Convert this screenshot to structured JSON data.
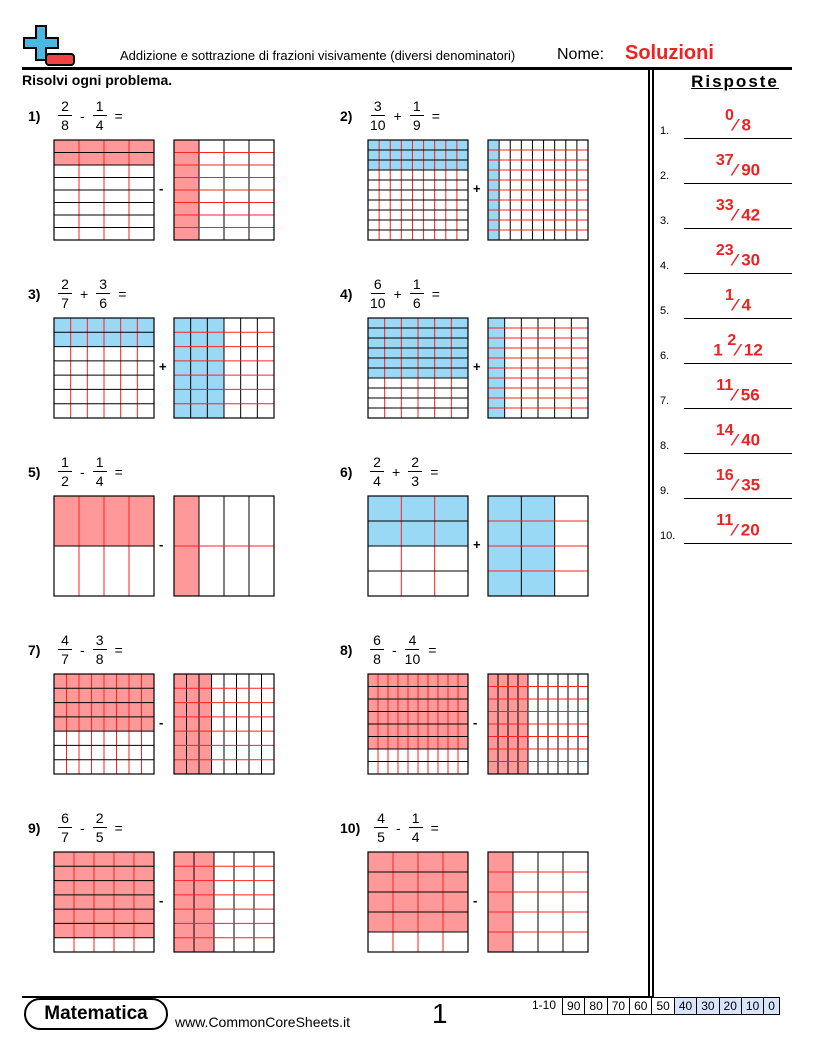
{
  "header": {
    "title": "Addizione e sottrazione di frazioni visivamente (diversi denominatori)",
    "name_label": "Nome:",
    "name_value": "Soluzioni",
    "instructions": "Risolvi ogni problema.",
    "answers_title": "Risposte"
  },
  "colors": {
    "subtract_fill": "#ff9999",
    "add_fill": "#99d9f5",
    "grid_inner": "#ff2222",
    "answer": "#e22222"
  },
  "problems": [
    {
      "num": "1)",
      "a": [
        "2",
        "8"
      ],
      "op": "-",
      "b": [
        "1",
        "4"
      ]
    },
    {
      "num": "2)",
      "a": [
        "3",
        "10"
      ],
      "op": "+",
      "b": [
        "1",
        "9"
      ]
    },
    {
      "num": "3)",
      "a": [
        "2",
        "7"
      ],
      "op": "+",
      "b": [
        "3",
        "6"
      ]
    },
    {
      "num": "4)",
      "a": [
        "6",
        "10"
      ],
      "op": "+",
      "b": [
        "1",
        "6"
      ]
    },
    {
      "num": "5)",
      "a": [
        "1",
        "2"
      ],
      "op": "-",
      "b": [
        "1",
        "4"
      ]
    },
    {
      "num": "6)",
      "a": [
        "2",
        "4"
      ],
      "op": "+",
      "b": [
        "2",
        "3"
      ]
    },
    {
      "num": "7)",
      "a": [
        "4",
        "7"
      ],
      "op": "-",
      "b": [
        "3",
        "8"
      ]
    },
    {
      "num": "8)",
      "a": [
        "6",
        "8"
      ],
      "op": "-",
      "b": [
        "4",
        "10"
      ]
    },
    {
      "num": "9)",
      "a": [
        "6",
        "7"
      ],
      "op": "-",
      "b": [
        "2",
        "5"
      ]
    },
    {
      "num": "10)",
      "a": [
        "4",
        "5"
      ],
      "op": "-",
      "b": [
        "1",
        "4"
      ]
    }
  ],
  "answers": [
    {
      "n": "1.",
      "whole": "",
      "num": "0",
      "den": "8"
    },
    {
      "n": "2.",
      "whole": "",
      "num": "37",
      "den": "90"
    },
    {
      "n": "3.",
      "whole": "",
      "num": "33",
      "den": "42"
    },
    {
      "n": "4.",
      "whole": "",
      "num": "23",
      "den": "30"
    },
    {
      "n": "5.",
      "whole": "",
      "num": "1",
      "den": "4"
    },
    {
      "n": "6.",
      "whole": "1",
      "num": "2",
      "den": "12"
    },
    {
      "n": "7.",
      "whole": "",
      "num": "11",
      "den": "56"
    },
    {
      "n": "8.",
      "whole": "",
      "num": "14",
      "den": "40"
    },
    {
      "n": "9.",
      "whole": "",
      "num": "16",
      "den": "35"
    },
    {
      "n": "10.",
      "whole": "",
      "num": "11",
      "den": "20"
    }
  ],
  "footer": {
    "brand": "Matematica",
    "site": "www.CommonCoreSheets.it",
    "page": "1",
    "score_label": "1-10",
    "scores": [
      "90",
      "80",
      "70",
      "60",
      "50",
      "40",
      "30",
      "20",
      "10",
      "0"
    ]
  }
}
